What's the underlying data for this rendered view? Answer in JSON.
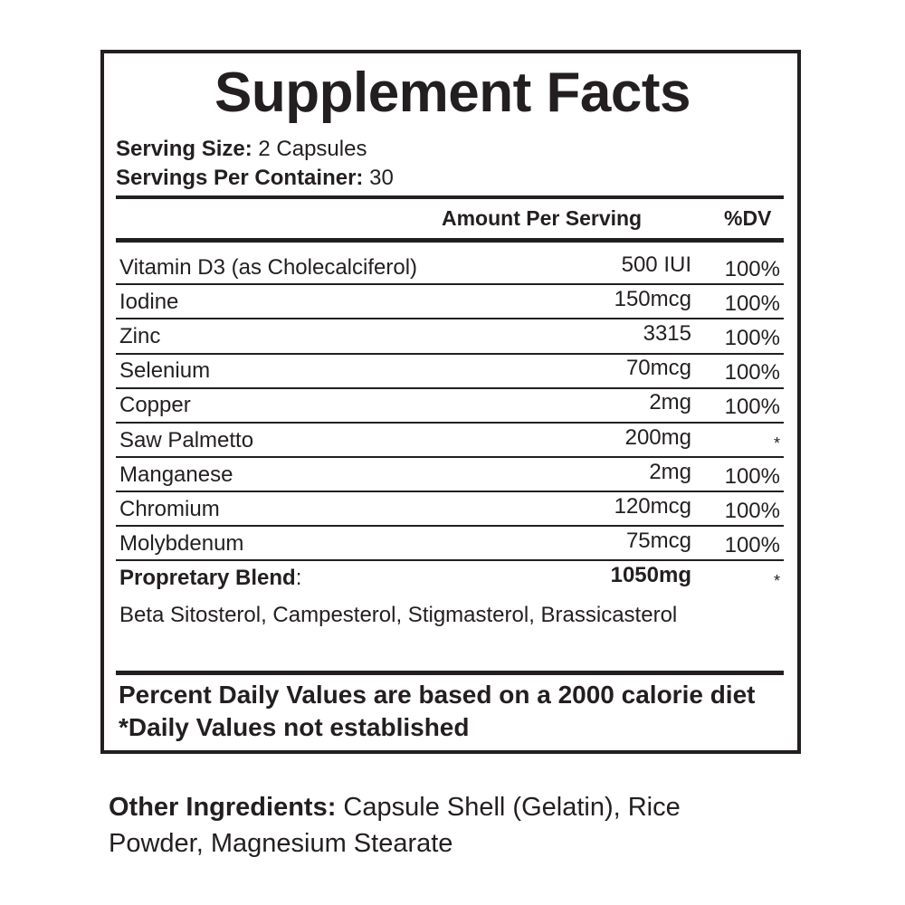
{
  "label": {
    "title": "Supplement Facts",
    "serving_size_label": "Serving Size:",
    "serving_size_value": "2 Capsules",
    "servings_per_container_label": "Servings Per Container:",
    "servings_per_container_value": "30",
    "header_amount": "Amount Per Serving",
    "header_dv": "%DV",
    "rows": [
      {
        "name": "Vitamin D3 (as Cholecalciferol)",
        "amount": "500 IUI",
        "dv": "100%"
      },
      {
        "name": "Iodine",
        "amount": "150mcg",
        "dv": "100%"
      },
      {
        "name": "Zinc",
        "amount": "3315",
        "dv": "100%"
      },
      {
        "name": "Selenium",
        "amount": "70mcg",
        "dv": "100%"
      },
      {
        "name": "Copper",
        "amount": "2mg",
        "dv": "100%"
      },
      {
        "name": "Saw Palmetto",
        "amount": "200mg",
        "dv": "*"
      },
      {
        "name": "Manganese",
        "amount": "2mg",
        "dv": "100%"
      },
      {
        "name": "Chromium",
        "amount": "120mcg",
        "dv": "100%"
      },
      {
        "name": "Molybdenum",
        "amount": "75mcg",
        "dv": "100%"
      }
    ],
    "blend": {
      "name": "Propretary Blend",
      "colon": ":",
      "amount": "1050mg",
      "dv": "*",
      "ingredients": "Beta Sitosterol, Campesterol, Stigmasterol, Brassicasterol"
    },
    "footnote_1": "Percent Daily Values are based on a 2000 calorie diet",
    "footnote_2": "*Daily Values not established"
  },
  "other_ingredients": {
    "label": "Other Ingredients:",
    "text": " Capsule Shell (Gelatin), Rice Powder, Magnesium Stearate"
  },
  "colors": {
    "ink": "#231f20",
    "background": "#ffffff"
  }
}
